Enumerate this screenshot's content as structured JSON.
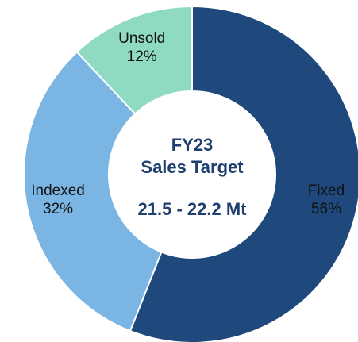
{
  "chart_data": {
    "type": "donut",
    "title": "FY23",
    "subtitle": "Sales Target",
    "annotation": "21.5 - 22.2 Mt",
    "categories": [
      "Fixed",
      "Indexed",
      "Unsold"
    ],
    "values": [
      56,
      32,
      12
    ],
    "value_labels": [
      "56%",
      "32%",
      "12%"
    ],
    "colors": [
      "#1f487c",
      "#7ab5e3",
      "#8fdac3"
    ]
  }
}
